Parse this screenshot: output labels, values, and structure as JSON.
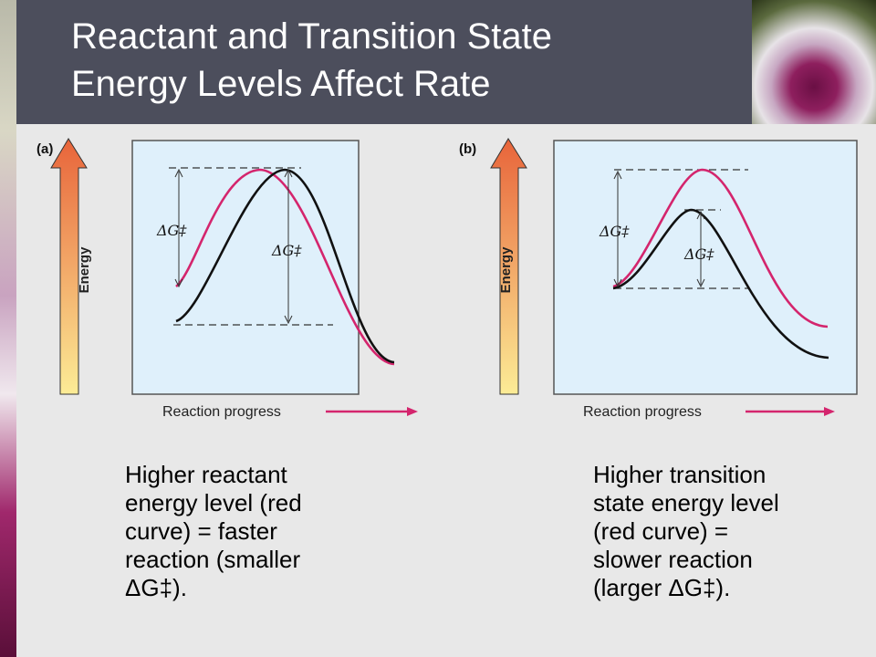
{
  "slide": {
    "title_lines": [
      "Reactant and Transition State",
      "Energy Levels Affect Rate"
    ]
  },
  "panels": {
    "a": {
      "tag": "(a)",
      "axis_label": "Energy",
      "x_label": "Reaction progress",
      "delta_g_red": "ΔG‡",
      "delta_g_black": "ΔG‡"
    },
    "b": {
      "tag": "(b)",
      "axis_label": "Energy",
      "x_label": "Reaction progress",
      "delta_g_red": "ΔG‡",
      "delta_g_black": "ΔG‡"
    }
  },
  "captions": {
    "a_lines": [
      "Higher reactant",
      "energy level (red",
      "curve) = faster",
      "reaction (smaller",
      "ΔG‡)."
    ],
    "b_lines": [
      "Higher transition",
      "state energy level",
      "(red curve) =",
      "slower reaction",
      "(larger ΔG‡)."
    ]
  },
  "colors": {
    "title_bar": "#4c4e5c",
    "plot_bg": "#dff0fb",
    "red_curve": "#d4256d",
    "black_curve": "#111111",
    "arrow_pink": "#d4256d",
    "energy_arrow_top": "#e8643a",
    "energy_arrow_bottom": "#fcec96"
  }
}
